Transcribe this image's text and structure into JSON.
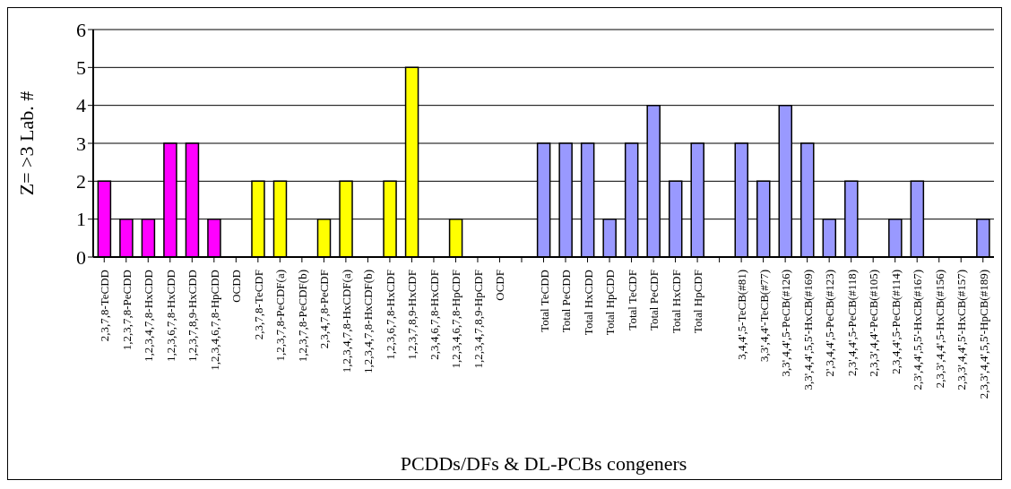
{
  "chart_data": {
    "type": "bar",
    "xlabel": "PCDDs/DFs & DL-PCBs congeners",
    "ylabel": "Z= >3 Lab. #",
    "categories": [
      "2,3,7,8-TeCDD",
      "1,2,3,7,8-PeCDD",
      "1,2,3,4,7,8-HxCDD",
      "1,2,3,6,7,8-HxCDD",
      "1,2,3,7,8,9-HxCDD",
      "1,2,3,4,6,7,8-HpCDD",
      "OCDD",
      "2,3,7,8-TeCDF",
      "1,2,3,7,8-PeCDF(a)",
      "1,2,3,7,8-PeCDF(b)",
      "2,3,4,7,8-PeCDF",
      "1,2,3,4,7,8-HxCDF(a)",
      "1,2,3,4,7,8-HxCDF(b)",
      "1,2,3,6,7,8-HxCDF",
      "1,2,3,7,8,9-HxCDF",
      "2,3,4,6,7,8-HxCDF",
      "1,2,3,4,6,7,8-HpCDF",
      "1,2,3,4,7,8,9-HpCDF",
      "OCDF",
      null,
      "Total TeCDD",
      "Total PeCDD",
      "Total HxCDD",
      "Total HpCDD",
      "Total TeCDF",
      "Total PeCDF",
      "Total HxCDF",
      "Total HpCDF",
      null,
      "3,4,4',5-TeCB(#81)",
      "3,3',4,4'-TeCB(#77)",
      "3,3',4,4',5-PeCB(#126)",
      "3,3',4,4',5,5'-HxCB(#169)",
      "2',3,4,4',5-PeCB(#123)",
      "2,3',4,4',5-PeCB(#118)",
      "2,3,3',4,4'-PeCB(#105)",
      "2,3,4,4',5-PeCB(#114)",
      "2,3',4,4',5,5'-HxCB(#167)",
      "2,3,3',4,4',5-HxCB(#156)",
      "2,3,3',4,4',5'-HxCB(#157)",
      "2,3,3',4,4',5,5'-HpCB(#189)"
    ],
    "values": [
      2,
      1,
      1,
      3,
      3,
      1,
      0,
      2,
      2,
      0,
      1,
      2,
      0,
      2,
      5,
      0,
      1,
      0,
      0,
      null,
      3,
      3,
      3,
      1,
      3,
      4,
      2,
      3,
      null,
      3,
      2,
      4,
      3,
      1,
      2,
      0,
      1,
      2,
      0,
      0,
      1
    ],
    "colors": [
      "#ff00ff",
      "#ff00ff",
      "#ff00ff",
      "#ff00ff",
      "#ff00ff",
      "#ff00ff",
      "#ff00ff",
      "#ffff00",
      "#ffff00",
      "#ffff00",
      "#ffff00",
      "#ffff00",
      "#ffff00",
      "#ffff00",
      "#ffff00",
      "#ffff00",
      "#ffff00",
      "#ffff00",
      "#ffff00",
      "#9999ff",
      "#9999ff",
      "#9999ff",
      "#9999ff",
      "#9999ff",
      "#9999ff",
      "#9999ff",
      "#9999ff",
      "#9999ff",
      "#9999ff",
      "#9999ff",
      "#9999ff",
      "#9999ff",
      "#9999ff",
      "#9999ff",
      "#9999ff",
      "#9999ff",
      "#9999ff",
      "#9999ff",
      "#9999ff",
      "#9999ff",
      "#9999ff"
    ],
    "ylim": [
      0,
      6
    ],
    "yticks": [
      0,
      1,
      2,
      3,
      4,
      5,
      6
    ],
    "grid": "y"
  }
}
